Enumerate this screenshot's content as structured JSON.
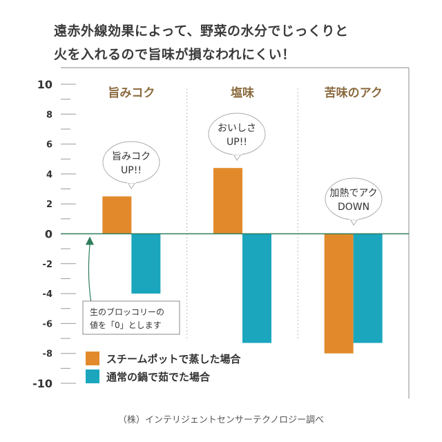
{
  "headline": {
    "line1": "遠赤外線効果によって、野菜の水分でじっくりと",
    "line2": "火を入れるので旨味が損なわれにくい！"
  },
  "chart_data": {
    "type": "bar",
    "categories": [
      "旨みコク",
      "塩味",
      "苦味のアク"
    ],
    "series": [
      {
        "name": "スチームポットで蒸した場合",
        "color": "#E28A2B",
        "values": [
          2.5,
          4.4,
          -8.0
        ]
      },
      {
        "name": "通常の鍋で茹でた場合",
        "color": "#1BA6BE",
        "values": [
          -4.0,
          -7.3,
          -7.3
        ]
      }
    ],
    "ylim": [
      -10,
      10
    ],
    "major_ticks": [
      10,
      8,
      6,
      4,
      2,
      0,
      -2,
      -4,
      -6,
      -8,
      -10
    ],
    "minor_step": 1,
    "callouts": [
      {
        "category_index": 0,
        "lines": [
          "旨みコク",
          "UP!!"
        ]
      },
      {
        "category_index": 1,
        "lines": [
          "おいしさ",
          "UP!!"
        ]
      },
      {
        "category_index": 2,
        "lines": [
          "加熱でアク",
          "DOWN"
        ]
      }
    ],
    "annotation": {
      "lines": [
        "生のブロッコリーの",
        "値を「0」とします"
      ]
    },
    "legend_position": "bottom-left",
    "zero_line_color": "#2E7D5B",
    "category_label_color": "#8B6A3E"
  },
  "footer": {
    "source": "（株）インテリジェントセンサーテクノロジー調べ"
  }
}
